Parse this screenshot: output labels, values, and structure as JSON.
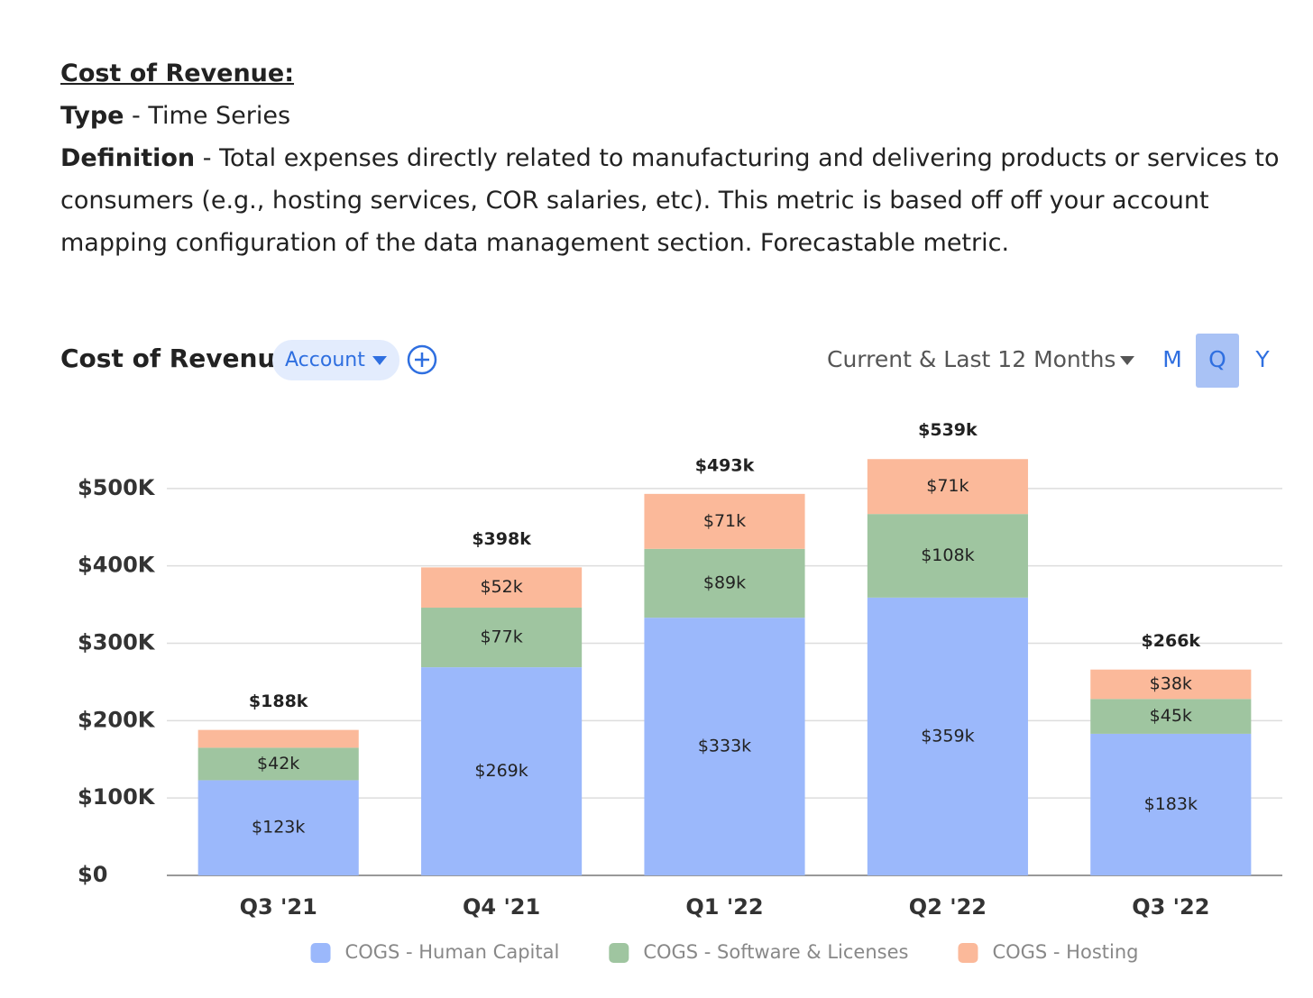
{
  "header": {
    "title": "Cost of Revenue:",
    "type_label": "Type",
    "type_value": " - Time Series",
    "definition_label": "Definition",
    "definition_value": " - Total expenses directly related to manufacturing and delivering products or services to consumers (e.g., hosting services, COR salaries, etc). This metric is based off off your account mapping configuration of the data management section. Forecastable metric."
  },
  "toolbar": {
    "title": "Cost of Revenue",
    "group_by": "Account",
    "range": "Current & Last 12 Months",
    "periods": [
      "M",
      "Q",
      "Y"
    ],
    "selected_period": "Q"
  },
  "chart_data": {
    "type": "stacked_bar",
    "categories": [
      "Q3 '21",
      "Q4 '21",
      "Q1 '22",
      "Q2 '22",
      "Q3 '22"
    ],
    "series": [
      {
        "name": "COGS - Human Capital",
        "color": "#9bb8fb",
        "values": [
          123000,
          269000,
          333000,
          359000,
          183000
        ],
        "value_labels": [
          "$123k",
          "$269k",
          "$333k",
          "$359k",
          "$183k"
        ]
      },
      {
        "name": "COGS - Software & Licenses",
        "color": "#9fc5a0",
        "values": [
          42000,
          77000,
          89000,
          108000,
          45000
        ],
        "value_labels": [
          "$42k",
          "$77k",
          "$89k",
          "$108k",
          "$45k"
        ]
      },
      {
        "name": "COGS - Hosting",
        "color": "#fbb99a",
        "values": [
          23000,
          52000,
          71000,
          71000,
          38000
        ],
        "value_labels": [
          null,
          "$52k",
          "$71k",
          "$71k",
          "$38k"
        ]
      }
    ],
    "totals": [
      188000,
      398000,
      493000,
      539000,
      266000
    ],
    "total_labels": [
      "$188k",
      "$398k",
      "$493k",
      "$539k",
      "$266k"
    ],
    "ylim": [
      0,
      600000
    ],
    "yticks": [
      {
        "value": 0,
        "label": "$0"
      },
      {
        "value": 100000,
        "label": "$100K"
      },
      {
        "value": 200000,
        "label": "$200K"
      },
      {
        "value": 300000,
        "label": "$300K"
      },
      {
        "value": 400000,
        "label": "$400K"
      },
      {
        "value": 500000,
        "label": "$500K"
      }
    ],
    "grid": true,
    "legend": "bottom"
  }
}
